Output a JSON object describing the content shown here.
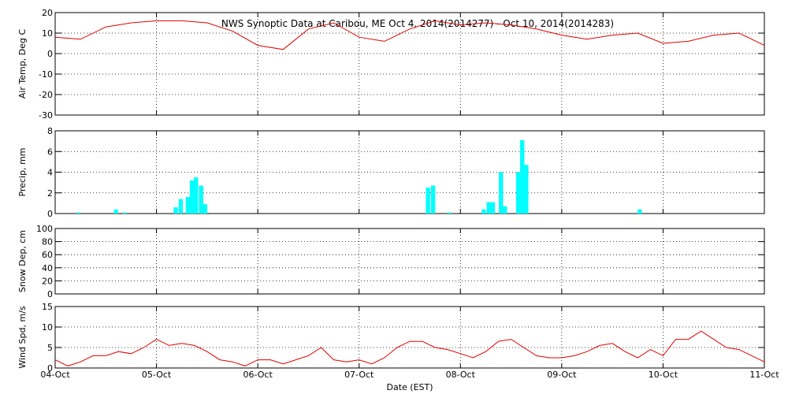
{
  "chart_data": [
    {
      "type": "line",
      "title": "NWS Synoptic Data at Caribou, ME   Oct  4, 2014(2014277) - Oct 10, 2014(2014283)",
      "ylabel": "Air Temp, Deg C",
      "color": "#e00000",
      "x": [
        0,
        0.25,
        0.5,
        0.75,
        1,
        1.25,
        1.5,
        1.75,
        2,
        2.25,
        2.5,
        2.75,
        3,
        3.25,
        3.5,
        3.75,
        4,
        4.25,
        4.5,
        4.75,
        5,
        5.25,
        5.5,
        5.75,
        6,
        6.25,
        6.5,
        6.75,
        7
      ],
      "values": [
        8,
        7,
        13,
        15,
        16,
        16,
        15,
        11,
        4,
        2,
        12,
        15,
        8,
        6,
        12,
        16,
        14,
        15,
        14,
        12,
        9,
        7,
        9,
        10,
        5,
        6,
        9,
        10,
        4
      ],
      "xlim": [
        0,
        7
      ],
      "xticks": [
        0,
        1,
        2,
        3,
        4,
        5,
        6,
        7
      ],
      "ylim": [
        -30,
        20
      ],
      "yticks": [
        -30,
        -20,
        -10,
        0,
        10,
        20
      ],
      "grid": true
    },
    {
      "type": "bar",
      "ylabel": "Precip, mm",
      "color": "#00ffff",
      "x": [
        0.23,
        0.6,
        0.69,
        1.19,
        1.24,
        1.31,
        1.35,
        1.39,
        1.44,
        1.48,
        3.68,
        3.73,
        3.89,
        4.23,
        4.28,
        4.32,
        4.4,
        4.44,
        4.57,
        4.61,
        4.65,
        5.77
      ],
      "values": [
        0.1,
        0.4,
        0.1,
        0.6,
        1.4,
        1.6,
        3.2,
        3.5,
        2.7,
        0.9,
        2.5,
        2.7,
        0.1,
        0.4,
        1.1,
        1.1,
        4.0,
        0.7,
        4.0,
        7.1,
        4.7,
        0.4
      ],
      "xlim": [
        0,
        7
      ],
      "xticks": [
        0,
        1,
        2,
        3,
        4,
        5,
        6,
        7
      ],
      "ylim": [
        0,
        8
      ],
      "yticks": [
        0,
        2,
        4,
        6,
        8
      ],
      "grid": true
    },
    {
      "type": "line",
      "ylabel": "Snow Dep, cm",
      "color": "#e00000",
      "xlim": [
        0,
        7
      ],
      "xticks": [
        0,
        1,
        2,
        3,
        4,
        5,
        6,
        7
      ],
      "ylim": [
        0,
        100
      ],
      "yticks": [
        0,
        20,
        40,
        60,
        80,
        100
      ],
      "grid": true
    },
    {
      "type": "line",
      "ylabel": "Wind Spd, m/s",
      "xlabel": "Date (EST)",
      "color": "#e00000",
      "x": [
        0,
        0.125,
        0.25,
        0.375,
        0.5,
        0.625,
        0.75,
        0.875,
        1,
        1.125,
        1.25,
        1.375,
        1.5,
        1.625,
        1.75,
        1.875,
        2,
        2.125,
        2.25,
        2.375,
        2.5,
        2.625,
        2.75,
        2.875,
        3,
        3.125,
        3.25,
        3.375,
        3.5,
        3.625,
        3.75,
        3.875,
        4,
        4.125,
        4.25,
        4.375,
        4.5,
        4.625,
        4.75,
        4.875,
        5,
        5.125,
        5.25,
        5.375,
        5.5,
        5.625,
        5.75,
        5.875,
        6,
        6.125,
        6.25,
        6.375,
        6.5,
        6.625,
        6.75,
        6.875,
        7
      ],
      "values": [
        2,
        0.5,
        1.5,
        3,
        3,
        4,
        3.5,
        5,
        7,
        5.5,
        6,
        5.5,
        4,
        2,
        1.5,
        0.5,
        2,
        2,
        1,
        2,
        3,
        5,
        2,
        1.5,
        2,
        1,
        2.5,
        5,
        6.5,
        6.5,
        5,
        4.5,
        3.5,
        2.5,
        4,
        6.5,
        7,
        5,
        3,
        2.5,
        2.5,
        3,
        4,
        5.5,
        6,
        4,
        2.5,
        4.5,
        3,
        7,
        7,
        9,
        7,
        5,
        4.5,
        3,
        1.5
      ],
      "xlim": [
        0,
        7
      ],
      "xticks": [
        {
          "value": 0,
          "label": "04-Oct"
        },
        {
          "value": 1,
          "label": "05-Oct"
        },
        {
          "value": 2,
          "label": "06-Oct"
        },
        {
          "value": 3,
          "label": "07-Oct"
        },
        {
          "value": 4,
          "label": "08-Oct"
        },
        {
          "value": 5,
          "label": "09-Oct"
        },
        {
          "value": 6,
          "label": "10-Oct"
        },
        {
          "value": 7,
          "label": "11-Oct"
        }
      ],
      "ylim": [
        0,
        15
      ],
      "yticks": [
        0,
        5,
        10,
        15
      ],
      "grid": true
    }
  ]
}
